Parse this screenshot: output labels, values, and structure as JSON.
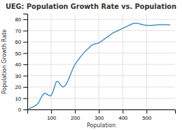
{
  "chart_data": {
    "type": "line",
    "title": "UEG: Population Growth Rate vs. Population",
    "x_label": "Population",
    "y_label": "Population Growth Rate",
    "color": "#4a90c4",
    "grid": true,
    "xlim": [
      0,
      620
    ],
    "ylim": [
      0,
      85
    ],
    "xticks": [
      100,
      200,
      300,
      400,
      500
    ],
    "yticks": [
      0,
      10,
      20,
      30,
      40,
      50,
      60,
      70,
      80
    ],
    "x": [
      5,
      10,
      15,
      20,
      25,
      30,
      35,
      40,
      45,
      50,
      55,
      60,
      65,
      70,
      75,
      80,
      85,
      90,
      95,
      100,
      105,
      110,
      115,
      120,
      125,
      130,
      135,
      140,
      145,
      150,
      155,
      160,
      165,
      170,
      175,
      180,
      185,
      190,
      195,
      200,
      210,
      220,
      230,
      240,
      250,
      260,
      270,
      280,
      290,
      300,
      310,
      320,
      330,
      340,
      350,
      360,
      370,
      380,
      390,
      400,
      410,
      420,
      430,
      440,
      450,
      460,
      470,
      480,
      490,
      500,
      510,
      520,
      530,
      540,
      550,
      560,
      570,
      580,
      590,
      600
    ],
    "values": [
      0.5,
      1.0,
      1.5,
      2.0,
      2.5,
      3.0,
      3.5,
      4.5,
      5.5,
      7.0,
      9.5,
      11.5,
      13.0,
      14.0,
      14.5,
      13.8,
      13.2,
      12.5,
      12.0,
      12.5,
      14.5,
      17.5,
      21.0,
      24.0,
      25.0,
      24.5,
      23.0,
      21.5,
      20.5,
      20.0,
      20.5,
      21.5,
      23.5,
      25.5,
      28.0,
      30.5,
      33.0,
      36.0,
      38.0,
      40.0,
      43.0,
      46.0,
      48.5,
      51.0,
      53.0,
      55.0,
      57.0,
      58.0,
      58.5,
      59.0,
      60.5,
      62.0,
      63.5,
      65.0,
      66.5,
      68.0,
      69.0,
      70.0,
      71.0,
      72.0,
      73.0,
      74.0,
      75.0,
      76.0,
      76.5,
      76.5,
      76.0,
      75.5,
      75.0,
      74.5,
      74.5,
      74.5,
      74.8,
      75.0,
      75.2,
      75.3,
      75.3,
      75.2,
      75.1,
      75.0
    ]
  }
}
